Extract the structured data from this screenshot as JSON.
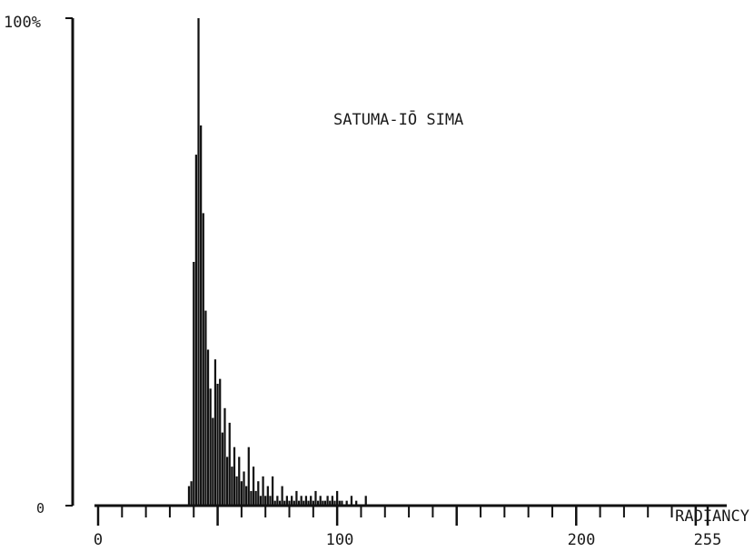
{
  "chart_data": {
    "type": "bar",
    "title": "SATUMA-IŌ SIMA",
    "xlabel": "RADIANCY",
    "ylabel": "",
    "x_ticks": [
      "0",
      "100",
      "200",
      "255"
    ],
    "y_ticks": [
      "0",
      "100%"
    ],
    "xlim": [
      0,
      255
    ],
    "ylim": [
      0,
      100
    ],
    "grid": false,
    "legend": "none",
    "bar_color": "#111111",
    "x": [
      38,
      39,
      40,
      41,
      42,
      43,
      44,
      45,
      46,
      47,
      48,
      49,
      50,
      51,
      52,
      53,
      54,
      55,
      56,
      57,
      58,
      59,
      60,
      61,
      62,
      63,
      64,
      65,
      66,
      67,
      68,
      69,
      70,
      71,
      72,
      73,
      74,
      75,
      76,
      77,
      78,
      79,
      80,
      81,
      82,
      83,
      84,
      85,
      86,
      87,
      88,
      89,
      90,
      91,
      92,
      93,
      94,
      95,
      96,
      97,
      98,
      99,
      100,
      101,
      102,
      104,
      106,
      108,
      112
    ],
    "values": [
      4,
      5,
      50,
      72,
      100,
      78,
      60,
      40,
      32,
      24,
      18,
      30,
      25,
      26,
      15,
      20,
      10,
      17,
      8,
      12,
      6,
      10,
      5,
      7,
      4,
      12,
      3,
      8,
      3,
      5,
      2,
      6,
      2,
      4,
      2,
      6,
      1,
      2,
      1,
      4,
      1,
      2,
      1,
      2,
      1,
      3,
      1,
      2,
      1,
      2,
      1,
      2,
      1,
      3,
      1,
      2,
      1,
      1,
      2,
      1,
      2,
      1,
      3,
      1,
      1,
      1,
      2,
      1,
      2
    ]
  }
}
